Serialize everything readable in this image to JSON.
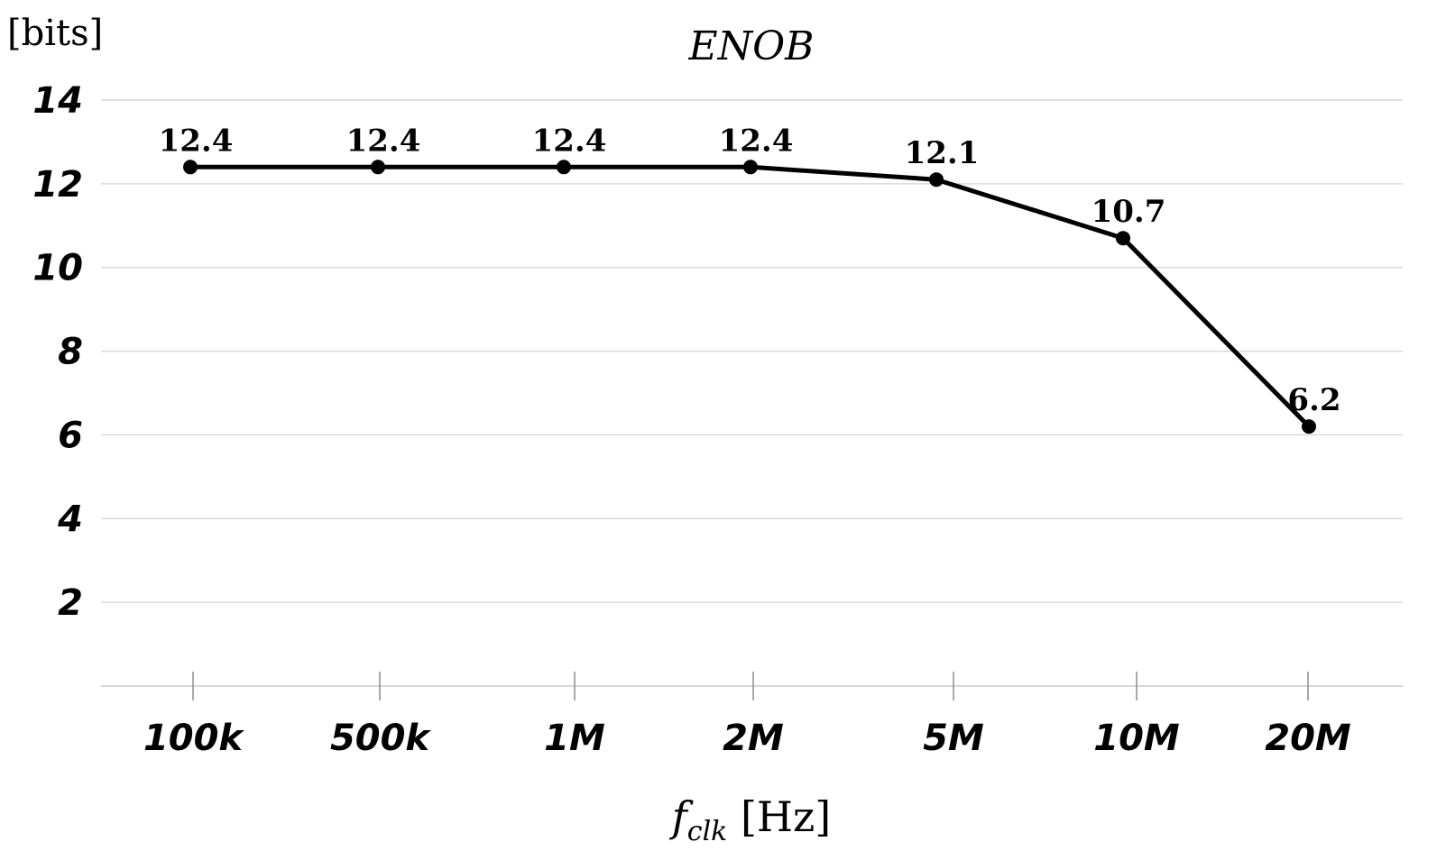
{
  "chart_data": {
    "type": "line",
    "title": "ENOB",
    "ylabel": "[bits]",
    "xlabel": {
      "main": "f",
      "sub": "clk",
      "unit": "[Hz]"
    },
    "categories": [
      "100k",
      "500k",
      "1M",
      "2M",
      "5M",
      "10M",
      "20M"
    ],
    "series": [
      {
        "values": [
          12.4,
          12.4,
          12.4,
          12.4,
          12.1,
          10.7,
          6.2
        ]
      }
    ],
    "data_labels": [
      "12.4",
      "12.4",
      "12.4",
      "12.4",
      "12.1",
      "10.7",
      "6.2"
    ],
    "yticks": [
      "2",
      "4",
      "6",
      "8",
      "10",
      "12",
      "14"
    ],
    "ylim": [
      0,
      14
    ],
    "grid": true,
    "colors": {
      "line": "#000000",
      "grid": "#d9d9d9"
    }
  }
}
